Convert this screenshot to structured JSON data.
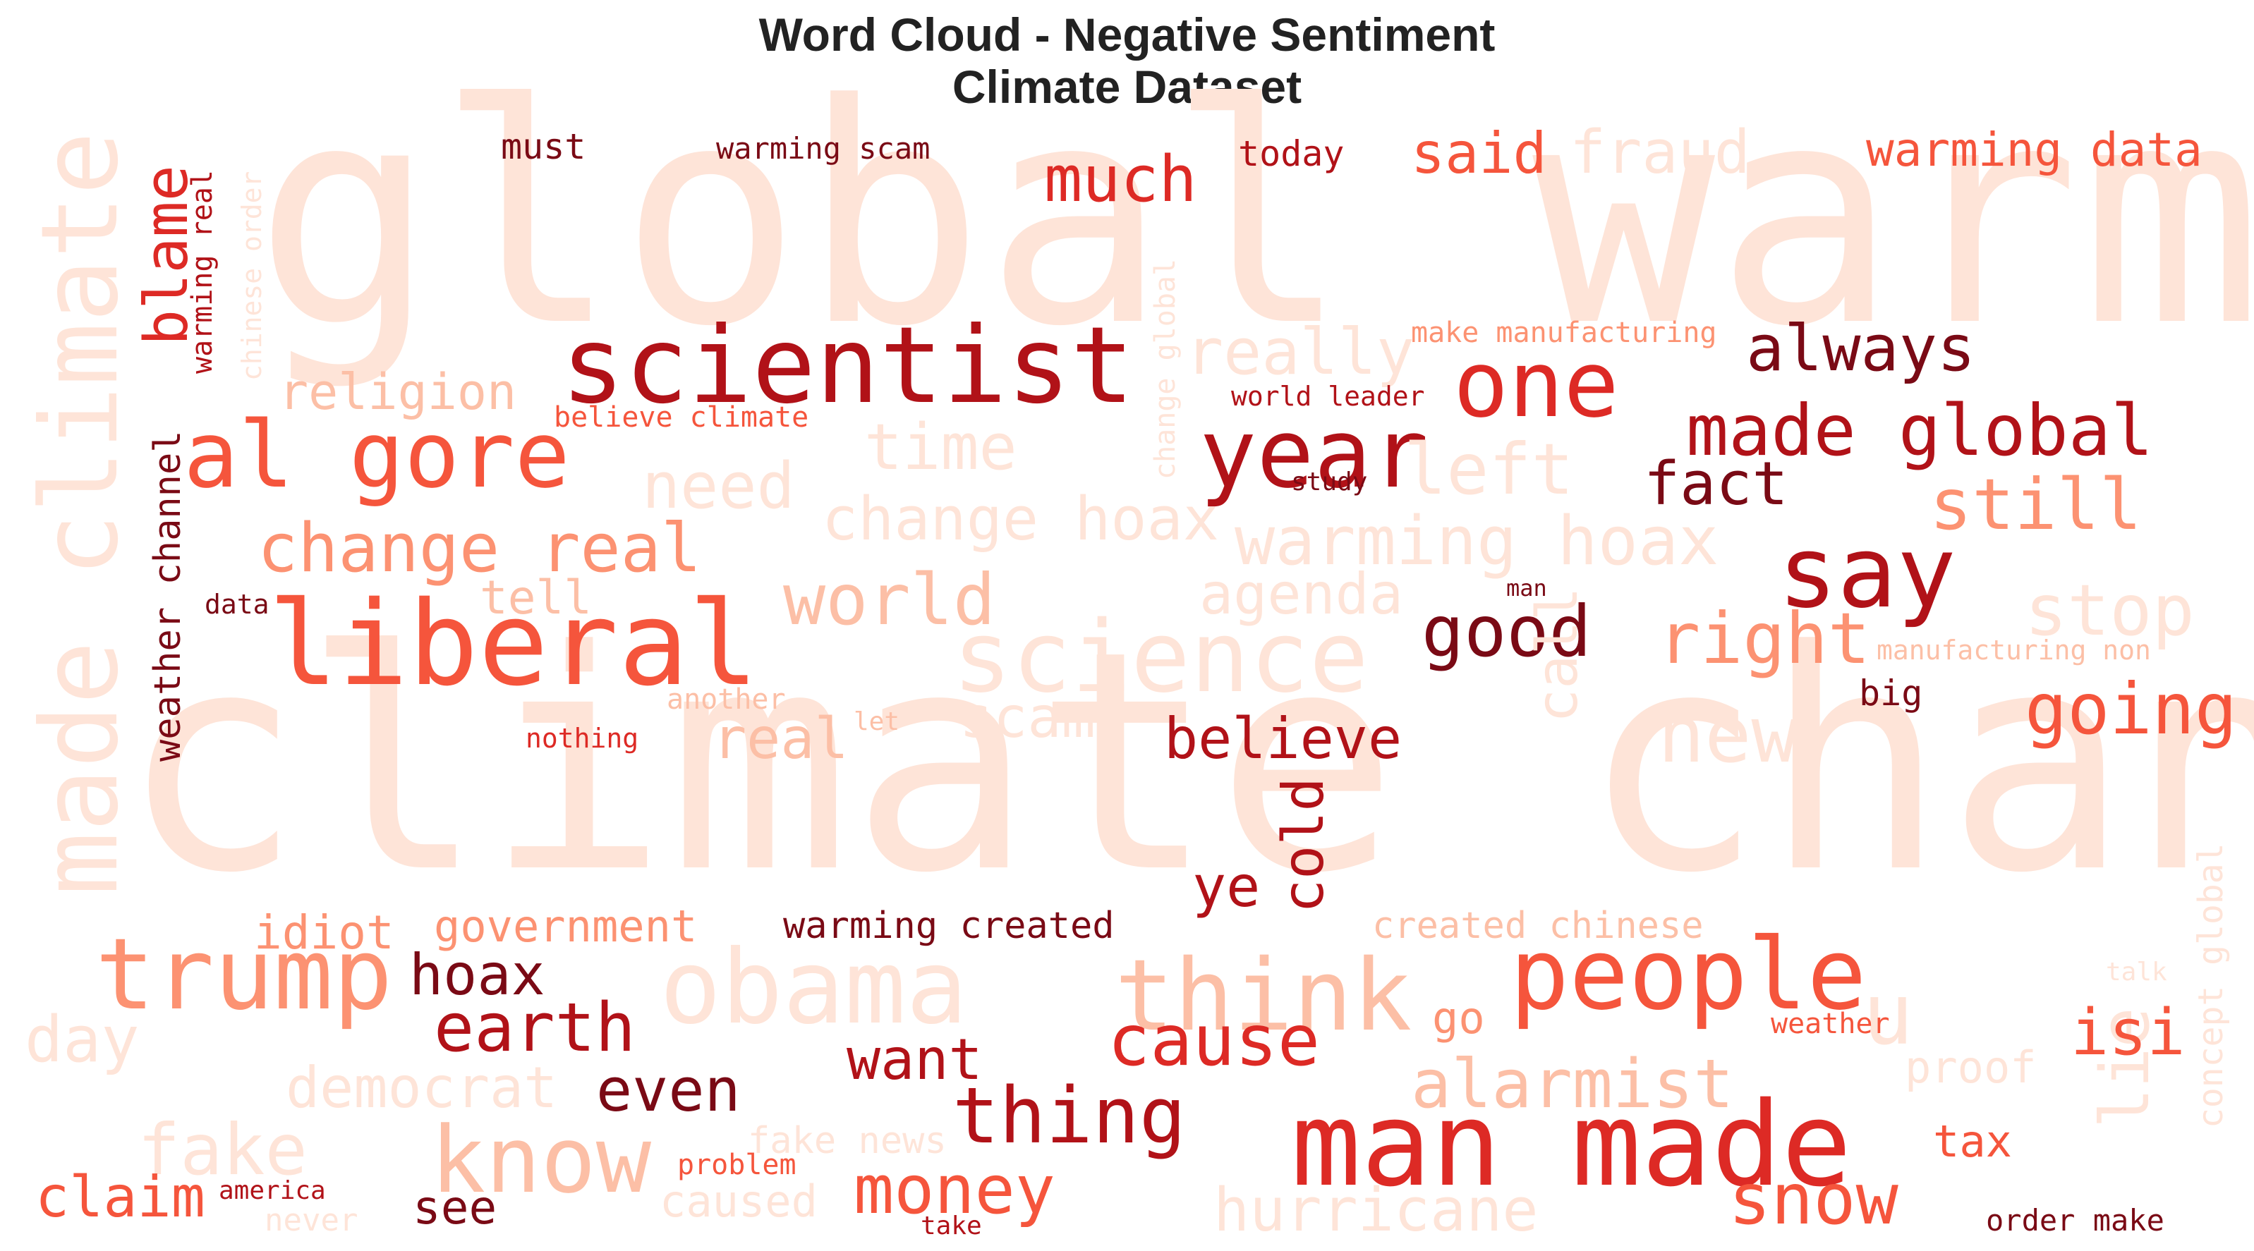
{
  "title": "Word Cloud - Negative Sentiment",
  "subtitle": "Climate Dataset",
  "palette": {
    "c1": "#fee4d8",
    "c2": "#fcbfa6",
    "c3": "#fc9272",
    "c4": "#f5553c",
    "c5": "#dd2a25",
    "c6": "#b11218",
    "c7": "#7a0a15"
  },
  "chart_data": {
    "type": "wordcloud",
    "title": "Word Cloud - Negative Sentiment\nClimate Dataset",
    "words": [
      {
        "text": "global warming",
        "weight": 100,
        "color": "c1"
      },
      {
        "text": "climate change",
        "weight": 100,
        "color": "c1"
      },
      {
        "text": "made climate",
        "weight": 45,
        "color": "c1"
      },
      {
        "text": "scientist",
        "weight": 38,
        "color": "c6"
      },
      {
        "text": "liberal",
        "weight": 44,
        "color": "c4"
      },
      {
        "text": "al gore",
        "weight": 34,
        "color": "c4"
      },
      {
        "text": "man made",
        "weight": 42,
        "color": "c5"
      },
      {
        "text": "people",
        "weight": 38,
        "color": "c4"
      },
      {
        "text": "trump",
        "weight": 37,
        "color": "c3"
      },
      {
        "text": "obama",
        "weight": 38,
        "color": "c1"
      },
      {
        "text": "science",
        "weight": 36,
        "color": "c1"
      },
      {
        "text": "think",
        "weight": 36,
        "color": "c2"
      },
      {
        "text": "say",
        "weight": 35,
        "color": "c6"
      },
      {
        "text": "one",
        "weight": 34,
        "color": "c5"
      },
      {
        "text": "year",
        "weight": 33,
        "color": "c6"
      },
      {
        "text": "know",
        "weight": 33,
        "color": "c2"
      },
      {
        "text": "thing",
        "weight": 28,
        "color": "c6"
      },
      {
        "text": "cause",
        "weight": 28,
        "color": "c5"
      },
      {
        "text": "made global",
        "weight": 28,
        "color": "c6"
      },
      {
        "text": "blame",
        "weight": 27,
        "color": "c5"
      },
      {
        "text": "warming hoax",
        "weight": 25,
        "color": "c1"
      },
      {
        "text": "change real",
        "weight": 25,
        "color": "c3"
      },
      {
        "text": "earth",
        "weight": 25,
        "color": "c6"
      },
      {
        "text": "money",
        "weight": 25,
        "color": "c4"
      },
      {
        "text": "stop",
        "weight": 25,
        "color": "c1"
      },
      {
        "text": "right",
        "weight": 25,
        "color": "c3"
      },
      {
        "text": "world",
        "weight": 25,
        "color": "c2"
      },
      {
        "text": "new",
        "weight": 25,
        "color": "c1"
      },
      {
        "text": "snow",
        "weight": 25,
        "color": "c4"
      },
      {
        "text": "lie",
        "weight": 25,
        "color": "c1"
      },
      {
        "text": "u",
        "weight": 25,
        "color": "c1"
      },
      {
        "text": "fake",
        "weight": 25,
        "color": "c1"
      },
      {
        "text": "much",
        "weight": 24,
        "color": "c5"
      },
      {
        "text": "fraud",
        "weight": 23,
        "color": "c1"
      },
      {
        "text": "really",
        "weight": 23,
        "color": "c1"
      },
      {
        "text": "left",
        "weight": 23,
        "color": "c1"
      },
      {
        "text": "time",
        "weight": 23,
        "color": "c1"
      },
      {
        "text": "need",
        "weight": 23,
        "color": "c1"
      },
      {
        "text": "still",
        "weight": 23,
        "color": "c3"
      },
      {
        "text": "going",
        "weight": 23,
        "color": "c4"
      },
      {
        "text": "good",
        "weight": 23,
        "color": "c7"
      },
      {
        "text": "alarmist",
        "weight": 23,
        "color": "c2"
      },
      {
        "text": "hurricane",
        "weight": 22,
        "color": "c1"
      },
      {
        "text": "change hoax",
        "weight": 21,
        "color": "c1"
      },
      {
        "text": "always",
        "weight": 21,
        "color": "c7"
      },
      {
        "text": "even",
        "weight": 21,
        "color": "c7"
      },
      {
        "text": "day",
        "weight": 21,
        "color": "c1"
      },
      {
        "text": "claim",
        "weight": 21,
        "color": "c4"
      },
      {
        "text": "isi",
        "weight": 21,
        "color": "c4"
      },
      {
        "text": "democrat",
        "weight": 20,
        "color": "c1"
      },
      {
        "text": "fact",
        "weight": 20,
        "color": "c7"
      },
      {
        "text": "said",
        "weight": 20,
        "color": "c4"
      },
      {
        "text": "believe",
        "weight": 19,
        "color": "c6"
      },
      {
        "text": "religion",
        "weight": 19,
        "color": "c2"
      },
      {
        "text": "agenda",
        "weight": 19,
        "color": "c1"
      },
      {
        "text": "scam",
        "weight": 19,
        "color": "c1"
      },
      {
        "text": "real",
        "weight": 19,
        "color": "c2"
      },
      {
        "text": "hoax",
        "weight": 19,
        "color": "c7"
      },
      {
        "text": "want",
        "weight": 19,
        "color": "c6"
      },
      {
        "text": "cold",
        "weight": 19,
        "color": "c6"
      },
      {
        "text": "call",
        "weight": 19,
        "color": "c1"
      },
      {
        "text": "ye",
        "weight": 19,
        "color": "c6"
      },
      {
        "text": "warming data",
        "weight": 18,
        "color": "c4"
      },
      {
        "text": "idiot",
        "weight": 17,
        "color": "c3"
      },
      {
        "text": "government",
        "weight": 17,
        "color": "c3"
      },
      {
        "text": "tell",
        "weight": 17,
        "color": "c2"
      },
      {
        "text": "see",
        "weight": 17,
        "color": "c7"
      },
      {
        "text": "caused",
        "weight": 17,
        "color": "c1"
      },
      {
        "text": "go",
        "weight": 16,
        "color": "c3"
      },
      {
        "text": "tax",
        "weight": 16,
        "color": "c4"
      },
      {
        "text": "proof",
        "weight": 16,
        "color": "c1"
      },
      {
        "text": "warming created",
        "weight": 15,
        "color": "c7"
      },
      {
        "text": "created chinese",
        "weight": 15,
        "color": "c2"
      },
      {
        "text": "fake news",
        "weight": 15,
        "color": "c1"
      },
      {
        "text": "weather channel",
        "weight": 15,
        "color": "c7"
      },
      {
        "text": "must",
        "weight": 13,
        "color": "c7"
      },
      {
        "text": "today",
        "weight": 13,
        "color": "c6"
      },
      {
        "text": "big",
        "weight": 13,
        "color": "c7"
      },
      {
        "text": "concept global",
        "weight": 13,
        "color": "c1"
      },
      {
        "text": "warming scam",
        "weight": 11,
        "color": "c7"
      },
      {
        "text": "warming real",
        "weight": 11,
        "color": "c6"
      },
      {
        "text": "chinese order",
        "weight": 10,
        "color": "c1"
      },
      {
        "text": "change global",
        "weight": 11,
        "color": "c1"
      },
      {
        "text": "make manufacturing",
        "weight": 11,
        "color": "c3"
      },
      {
        "text": "world leader",
        "weight": 11,
        "color": "c6"
      },
      {
        "text": "believe climate",
        "weight": 11,
        "color": "c4"
      },
      {
        "text": "study",
        "weight": 10,
        "color": "c7"
      },
      {
        "text": "data",
        "weight": 10,
        "color": "c7"
      },
      {
        "text": "man",
        "weight": 9,
        "color": "c7"
      },
      {
        "text": "manufacturing non",
        "weight": 10,
        "color": "c2"
      },
      {
        "text": "another",
        "weight": 10,
        "color": "c2"
      },
      {
        "text": "let",
        "weight": 9,
        "color": "c2"
      },
      {
        "text": "nothing",
        "weight": 10,
        "color": "c5"
      },
      {
        "text": "problem",
        "weight": 10,
        "color": "c4"
      },
      {
        "text": "america",
        "weight": 9,
        "color": "c6"
      },
      {
        "text": "never",
        "weight": 11,
        "color": "c1"
      },
      {
        "text": "take",
        "weight": 9,
        "color": "c6"
      },
      {
        "text": "order make",
        "weight": 11,
        "color": "c7"
      },
      {
        "text": "talk",
        "weight": 9,
        "color": "c1"
      },
      {
        "text": "weather",
        "weight": 10,
        "color": "c4"
      }
    ]
  }
}
